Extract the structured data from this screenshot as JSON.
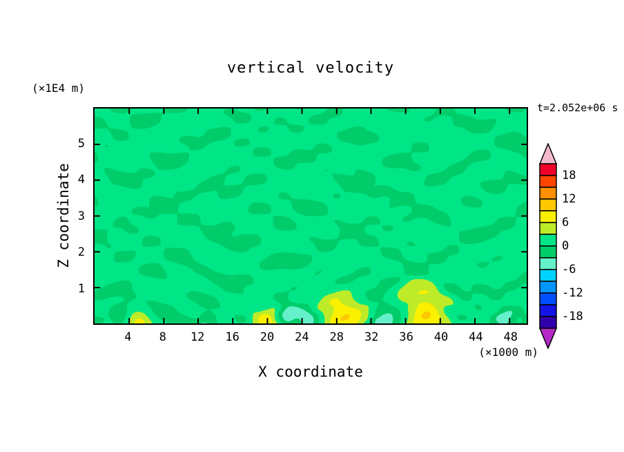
{
  "title": "vertical velocity",
  "timestamp": "t=2.052e+06 s",
  "axes": {
    "x_label": "X coordinate",
    "x_unit": "(×1000 m)",
    "x_ticks": [
      4,
      8,
      12,
      16,
      20,
      24,
      28,
      32,
      36,
      40,
      44,
      48
    ],
    "x_range": [
      0,
      50
    ],
    "z_label": "Z coordinate",
    "z_unit": "(×1E4 m)",
    "z_ticks": [
      1,
      2,
      3,
      4,
      5
    ],
    "z_range": [
      0,
      6
    ]
  },
  "colorbar": {
    "labels": [
      "18",
      "12",
      "6",
      "0",
      "-6",
      "-12",
      "-18"
    ],
    "min": -21,
    "max": 21,
    "step": 3,
    "band_colors": [
      "#3200AA",
      "#1414E6",
      "#0050FF",
      "#0096FF",
      "#00D2FF",
      "#64F0C8",
      "#00CD69",
      "#00E687",
      "#BEEB28",
      "#FAF000",
      "#FFC800",
      "#FF9100",
      "#FF4600",
      "#F00028"
    ],
    "over_color": "#F5B9CD",
    "under_color": "#B428C8"
  },
  "chart_data": {
    "type": "heatmap",
    "title": "vertical velocity",
    "xlabel": "X coordinate",
    "x_unit": "(×1000 m)",
    "ylabel": "Z coordinate",
    "y_unit": "(×1E4 m)",
    "time_label": "t=2.052e+06 s",
    "x_range": [
      0,
      50
    ],
    "z_range": [
      0,
      6
    ],
    "contour_interval": 3,
    "contour_levels": [
      -21,
      -18,
      -15,
      -12,
      -9,
      -6,
      -3,
      0,
      3,
      6,
      9,
      12,
      15,
      18,
      21
    ],
    "legend_position": "right",
    "field_summary": "Horizontally streaky vertical-velocity field, mostly between -3 and +3 (two green bands). Stronger updrafts of +6 to +9 (yellow) hug the lower boundary near x≈28 and x≈38 with a weaker one near x≈20; small -3 to -6 (pale mint) downdraft patches flank them near the bottom.",
    "field_model": {
      "bias": 0.9,
      "tanh_amp": 2.05,
      "tanh_scale": 1.6,
      "modes": [
        {
          "a": 1.25,
          "lx": 13.5,
          "lz": 1.55,
          "px": 0.35,
          "pz": 1.1
        },
        {
          "a": 1.05,
          "lx": 8.8,
          "lz": 1.1,
          "px": 2.1,
          "pz": 4.0
        },
        {
          "a": 0.9,
          "lx": 6.4,
          "lz": 0.82,
          "px": 4.9,
          "pz": 2.6
        },
        {
          "a": 0.8,
          "lx": 11.2,
          "lz": 0.92,
          "px": 1.7,
          "pz": 5.3
        },
        {
          "a": 0.7,
          "lx": 5.1,
          "lz": 0.7,
          "px": 3.3,
          "pz": 0.6
        },
        {
          "a": 0.9,
          "lx": 16.8,
          "lz": 1.3,
          "px": 5.5,
          "pz": 2.2
        },
        {
          "a": 0.6,
          "lx": 4.2,
          "lz": 0.62,
          "px": 0.9,
          "pz": 3.8
        },
        {
          "a": 0.8,
          "lx": 7.7,
          "lz": 1.02,
          "px": 2.7,
          "pz": 1.9
        },
        {
          "a": 0.5,
          "lx": 3.6,
          "lz": 0.56,
          "px": 5.1,
          "pz": 0.2
        },
        {
          "a": 0.7,
          "lx": 21.5,
          "lz": 0.76,
          "px": 1.2,
          "pz": 2.9
        },
        {
          "a": 0.6,
          "lx": 8.5,
          "lz": 1.42,
          "px": 3.9,
          "pz": 5.7
        },
        {
          "a": 0.5,
          "lx": 5.9,
          "lz": 0.94,
          "px": 0.1,
          "pz": 1.5
        }
      ],
      "bumps": [
        {
          "x": 28.6,
          "z": 0.3,
          "sx": 1.8,
          "sz": 0.38,
          "a": 7.5
        },
        {
          "x": 38.2,
          "z": 0.35,
          "sx": 1.6,
          "sz": 0.42,
          "a": 8.2
        },
        {
          "x": 20.2,
          "z": 0.05,
          "sx": 1.2,
          "sz": 0.35,
          "a": 6.0
        },
        {
          "x": 5.2,
          "z": 0.0,
          "sx": 0.9,
          "sz": 0.28,
          "a": 4.5
        },
        {
          "x": 22.2,
          "z": 0.3,
          "sx": 0.9,
          "sz": 0.28,
          "a": -5.5
        },
        {
          "x": 24.6,
          "z": 0.1,
          "sx": 0.9,
          "sz": 0.26,
          "a": -4.8
        },
        {
          "x": 33.4,
          "z": 0.25,
          "sx": 1.1,
          "sz": 0.3,
          "a": -5.2
        },
        {
          "x": 13.1,
          "z": 0.1,
          "sx": 1.0,
          "sz": 0.25,
          "a": -4.5
        },
        {
          "x": 47.5,
          "z": 0.22,
          "sx": 0.9,
          "sz": 0.26,
          "a": -4.6
        },
        {
          "x": 2.8,
          "z": 0.15,
          "sx": 0.8,
          "sz": 0.25,
          "a": -4.2
        }
      ]
    }
  }
}
